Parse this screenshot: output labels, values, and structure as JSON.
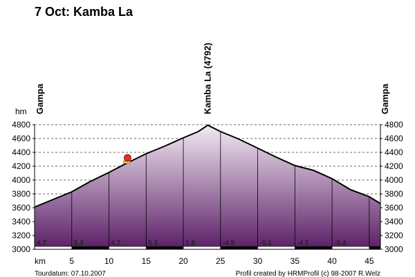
{
  "title": "7 Oct: Kamba La",
  "footer": {
    "date": "Tourdatum: 07.10.2007",
    "credit": "Profil created by HRMProfil (c) 98-2007 R.Welz"
  },
  "colors": {
    "fill_top": "#f3eaf3",
    "fill_bottom": "#5a1e66",
    "line": "#000000",
    "marker": "#e03030"
  },
  "chart_data": {
    "type": "area",
    "xlabel": "km",
    "ylabel": "hm",
    "xlim": [
      0,
      46.5
    ],
    "ylim": [
      3000,
      4800
    ],
    "x_ticks": [
      5,
      10,
      15,
      20,
      25,
      30,
      35,
      40,
      45
    ],
    "y_ticks": [
      3000,
      3200,
      3400,
      3600,
      3800,
      4000,
      4200,
      4400,
      4600,
      4800
    ],
    "grid": true,
    "series": [
      {
        "x": [
          0,
          2.5,
          5,
          7.5,
          10,
          12.5,
          15,
          17.5,
          20,
          22,
          23.3,
          25,
          27.5,
          30,
          32.5,
          35,
          37.5,
          40,
          42.5,
          45,
          46.5
        ],
        "y": [
          3610,
          3720,
          3830,
          3980,
          4110,
          4250,
          4380,
          4490,
          4610,
          4700,
          4792,
          4700,
          4590,
          4460,
          4330,
          4210,
          4140,
          4020,
          3860,
          3760,
          3660
        ]
      }
    ],
    "place_labels": [
      {
        "label": "Gampa",
        "x": 0
      },
      {
        "label": "Kamba La (4792)",
        "x": 23.3
      },
      {
        "label": "Gampa",
        "x": 46.5
      }
    ],
    "segment_dividers": [
      5,
      10,
      15,
      20,
      25,
      30,
      35,
      40,
      45
    ],
    "grade_labels": [
      {
        "label": "4.7",
        "x": 0
      },
      {
        "label": "5.3",
        "x": 5
      },
      {
        "label": "4.7",
        "x": 10
      },
      {
        "label": "5.3",
        "x": 15
      },
      {
        "label": "1.8",
        "x": 20
      },
      {
        "label": "-4.9",
        "x": 25
      },
      {
        "label": "-5.1",
        "x": 30
      },
      {
        "label": "-4.1",
        "x": 35
      },
      {
        "label": "-5.4",
        "x": 40
      }
    ],
    "marker": {
      "x": 12.5,
      "y": 4300
    }
  }
}
